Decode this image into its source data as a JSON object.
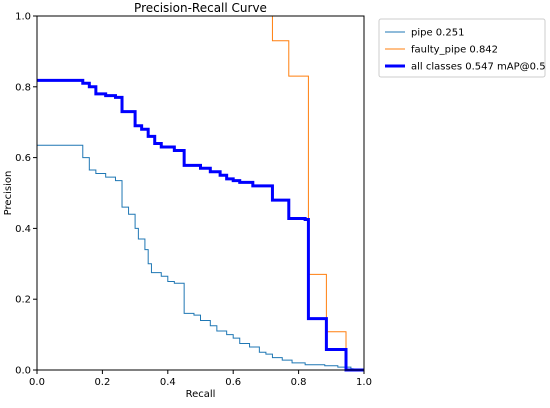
{
  "chart_data": {
    "type": "line",
    "title": "Precision-Recall Curve",
    "xlabel": "Recall",
    "ylabel": "Precision",
    "xlim": [
      0,
      1
    ],
    "ylim": [
      0,
      1
    ],
    "xticks": [
      "0.0",
      "0.2",
      "0.4",
      "0.6",
      "0.8",
      "1.0"
    ],
    "yticks": [
      "0.0",
      "0.2",
      "0.4",
      "0.6",
      "0.8",
      "1.0"
    ],
    "legend_position": "outside-top-right",
    "series": [
      {
        "name": "pipe 0.251",
        "color": "#1f77b4",
        "width": 1,
        "points": [
          [
            0,
            0.635
          ],
          [
            0.14,
            0.635
          ],
          [
            0.14,
            0.6
          ],
          [
            0.16,
            0.6
          ],
          [
            0.16,
            0.565
          ],
          [
            0.18,
            0.565
          ],
          [
            0.18,
            0.555
          ],
          [
            0.21,
            0.555
          ],
          [
            0.21,
            0.545
          ],
          [
            0.24,
            0.545
          ],
          [
            0.24,
            0.535
          ],
          [
            0.26,
            0.535
          ],
          [
            0.26,
            0.46
          ],
          [
            0.28,
            0.46
          ],
          [
            0.28,
            0.44
          ],
          [
            0.3,
            0.44
          ],
          [
            0.3,
            0.4
          ],
          [
            0.31,
            0.4
          ],
          [
            0.31,
            0.37
          ],
          [
            0.33,
            0.37
          ],
          [
            0.33,
            0.34
          ],
          [
            0.34,
            0.34
          ],
          [
            0.34,
            0.3
          ],
          [
            0.35,
            0.3
          ],
          [
            0.35,
            0.275
          ],
          [
            0.38,
            0.275
          ],
          [
            0.38,
            0.265
          ],
          [
            0.4,
            0.265
          ],
          [
            0.4,
            0.25
          ],
          [
            0.42,
            0.25
          ],
          [
            0.42,
            0.245
          ],
          [
            0.45,
            0.245
          ],
          [
            0.45,
            0.16
          ],
          [
            0.48,
            0.16
          ],
          [
            0.48,
            0.155
          ],
          [
            0.5,
            0.155
          ],
          [
            0.5,
            0.14
          ],
          [
            0.53,
            0.14
          ],
          [
            0.53,
            0.125
          ],
          [
            0.55,
            0.125
          ],
          [
            0.55,
            0.11
          ],
          [
            0.58,
            0.11
          ],
          [
            0.58,
            0.1
          ],
          [
            0.6,
            0.1
          ],
          [
            0.6,
            0.09
          ],
          [
            0.62,
            0.09
          ],
          [
            0.62,
            0.075
          ],
          [
            0.65,
            0.075
          ],
          [
            0.65,
            0.065
          ],
          [
            0.68,
            0.065
          ],
          [
            0.68,
            0.05
          ],
          [
            0.7,
            0.05
          ],
          [
            0.7,
            0.045
          ],
          [
            0.72,
            0.045
          ],
          [
            0.72,
            0.035
          ],
          [
            0.75,
            0.035
          ],
          [
            0.75,
            0.028
          ],
          [
            0.78,
            0.028
          ],
          [
            0.78,
            0.02
          ],
          [
            0.82,
            0.02
          ],
          [
            0.82,
            0.015
          ],
          [
            0.88,
            0.015
          ],
          [
            0.88,
            0.012
          ],
          [
            0.92,
            0.012
          ],
          [
            0.92,
            0.008
          ],
          [
            0.96,
            0.008
          ],
          [
            0.96,
            0.004
          ],
          [
            1.0,
            0.0
          ]
        ]
      },
      {
        "name": "faulty_pipe 0.842",
        "color": "#ff7f0e",
        "width": 1,
        "points": [
          [
            0.72,
            1.0
          ],
          [
            0.72,
            0.93
          ],
          [
            0.77,
            0.93
          ],
          [
            0.77,
            0.83
          ],
          [
            0.83,
            0.83
          ],
          [
            0.83,
            0.27
          ],
          [
            0.885,
            0.27
          ],
          [
            0.885,
            0.108
          ],
          [
            0.945,
            0.108
          ],
          [
            0.945,
            0.0
          ]
        ]
      },
      {
        "name": "all classes 0.547 mAP@0.5",
        "color": "#0000ff",
        "width": 3,
        "points": [
          [
            0,
            0.818
          ],
          [
            0.14,
            0.818
          ],
          [
            0.14,
            0.81
          ],
          [
            0.16,
            0.81
          ],
          [
            0.16,
            0.8
          ],
          [
            0.18,
            0.8
          ],
          [
            0.18,
            0.78
          ],
          [
            0.21,
            0.78
          ],
          [
            0.21,
            0.775
          ],
          [
            0.24,
            0.775
          ],
          [
            0.24,
            0.77
          ],
          [
            0.26,
            0.77
          ],
          [
            0.26,
            0.73
          ],
          [
            0.3,
            0.73
          ],
          [
            0.3,
            0.69
          ],
          [
            0.32,
            0.69
          ],
          [
            0.32,
            0.68
          ],
          [
            0.34,
            0.68
          ],
          [
            0.34,
            0.66
          ],
          [
            0.36,
            0.66
          ],
          [
            0.36,
            0.64
          ],
          [
            0.38,
            0.64
          ],
          [
            0.38,
            0.63
          ],
          [
            0.42,
            0.63
          ],
          [
            0.42,
            0.62
          ],
          [
            0.45,
            0.62
          ],
          [
            0.45,
            0.578
          ],
          [
            0.5,
            0.578
          ],
          [
            0.5,
            0.57
          ],
          [
            0.53,
            0.57
          ],
          [
            0.53,
            0.56
          ],
          [
            0.56,
            0.56
          ],
          [
            0.56,
            0.55
          ],
          [
            0.58,
            0.55
          ],
          [
            0.58,
            0.54
          ],
          [
            0.6,
            0.54
          ],
          [
            0.6,
            0.535
          ],
          [
            0.62,
            0.535
          ],
          [
            0.62,
            0.53
          ],
          [
            0.66,
            0.53
          ],
          [
            0.66,
            0.52
          ],
          [
            0.72,
            0.52
          ],
          [
            0.72,
            0.48
          ],
          [
            0.77,
            0.48
          ],
          [
            0.77,
            0.428
          ],
          [
            0.82,
            0.428
          ],
          [
            0.82,
            0.425
          ],
          [
            0.83,
            0.425
          ],
          [
            0.83,
            0.145
          ],
          [
            0.885,
            0.145
          ],
          [
            0.885,
            0.058
          ],
          [
            0.945,
            0.058
          ],
          [
            0.945,
            0.0
          ],
          [
            1.0,
            0.0
          ]
        ]
      }
    ]
  }
}
